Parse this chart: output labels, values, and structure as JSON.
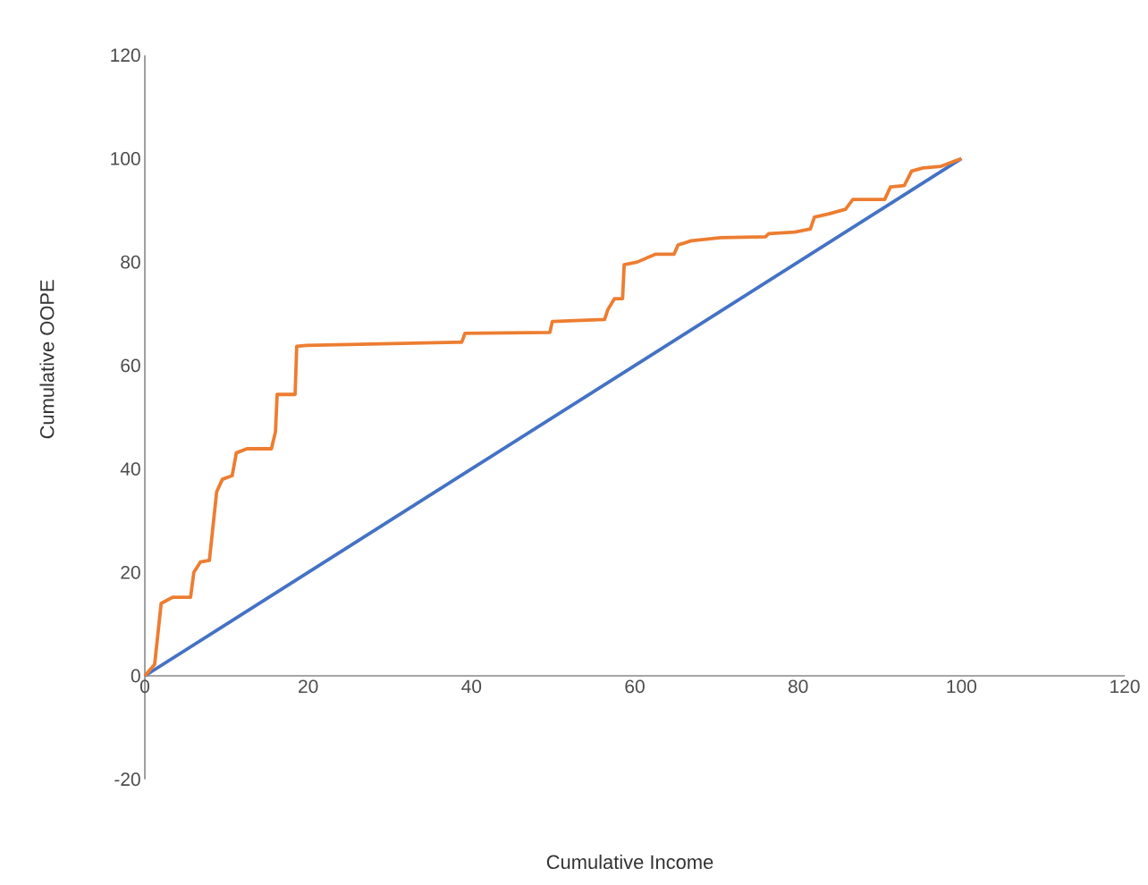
{
  "chart_data": {
    "type": "line",
    "xlabel": "Cumulative Income",
    "ylabel": "Cumulative OOPE",
    "xlim": [
      0,
      120
    ],
    "ylim": [
      -20,
      120
    ],
    "xticks": [
      0,
      20,
      40,
      60,
      80,
      100,
      120
    ],
    "yticks": [
      -20,
      0,
      20,
      40,
      60,
      80,
      100,
      120
    ],
    "series": [
      {
        "color": "#4472c4",
        "x": [
          0,
          100
        ],
        "values": [
          0,
          100
        ]
      },
      {
        "color": "#ed7d31",
        "x": [
          0,
          1.2,
          2,
          3.4,
          5.6,
          6,
          6.8,
          7.9,
          8.8,
          9.5,
          10.7,
          11.2,
          12.5,
          15.5,
          16,
          16.2,
          18.4,
          18.6,
          19.8,
          38.8,
          39.2,
          49.6,
          49.9,
          56.3,
          56.7,
          57.5,
          58.5,
          58.7,
          60.3,
          62.5,
          64.8,
          65.3,
          66.9,
          70.5,
          76,
          76.4,
          79.6,
          81.5,
          82,
          83.7,
          85.8,
          86.7,
          90.6,
          91.3,
          93,
          93.9,
          95.3,
          97.5,
          99.3,
          100
        ],
        "values": [
          0,
          2.2,
          14,
          15.2,
          15.2,
          20,
          22,
          22.3,
          35.6,
          38,
          38.7,
          43.1,
          43.9,
          43.9,
          47.2,
          54.4,
          54.4,
          63.7,
          63.9,
          64.5,
          66.2,
          66.4,
          68.5,
          68.9,
          70.8,
          72.9,
          72.9,
          79.5,
          80,
          81.5,
          81.5,
          83.3,
          84.1,
          84.7,
          84.9,
          85.5,
          85.8,
          86.4,
          88.7,
          89.3,
          90.2,
          92.1,
          92.1,
          94.5,
          94.8,
          97.6,
          98.2,
          98.5,
          99.6,
          100
        ]
      }
    ]
  }
}
